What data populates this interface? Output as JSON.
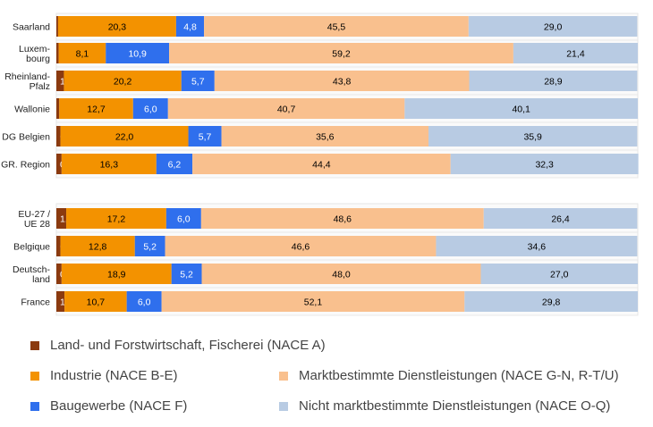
{
  "chart_data": {
    "type": "bar",
    "orientation": "horizontal",
    "stacked": true,
    "normalized": true,
    "categories": [
      "Saarland",
      "Luxem-\nbourg",
      "Rheinland-\nPfalz",
      "Wallonie",
      "DG Belgien",
      "GR. Region",
      "EU-27 /\nUE 28",
      "Belgique",
      "Deutsch-\nland",
      "France"
    ],
    "groups": [
      [
        0,
        1,
        2,
        3,
        4,
        5
      ],
      [
        6,
        7,
        8,
        9
      ]
    ],
    "series": [
      {
        "name": "Land- und Forstwirtschaft, Fischerei (NACE A)",
        "color": "#8B3A0F",
        "values": [
          0.3,
          0.4,
          1.3,
          0.5,
          0.7,
          0.9,
          1.7,
          0.7,
          0.9,
          1.4
        ]
      },
      {
        "name": "Industrie (NACE B-E)",
        "color": "#F39200",
        "values": [
          20.3,
          8.1,
          20.2,
          12.7,
          22.0,
          16.3,
          17.2,
          12.8,
          18.9,
          10.7
        ]
      },
      {
        "name": "Baugewerbe (NACE F)",
        "color": "#2F6FED",
        "values": [
          4.8,
          10.9,
          5.7,
          6.0,
          5.7,
          6.2,
          6.0,
          5.2,
          5.2,
          6.0
        ]
      },
      {
        "name": "Marktbestimmte Dienstleistungen (NACE G-N, R-T/U)",
        "color": "#F9C08E",
        "values": [
          45.5,
          59.2,
          43.8,
          40.7,
          35.6,
          44.4,
          48.6,
          46.6,
          48.0,
          52.1
        ]
      },
      {
        "name": "Nicht marktbestimmte Dienstleistungen (NACE O-Q)",
        "color": "#B8CBE3",
        "values": [
          29.0,
          21.4,
          28.9,
          40.1,
          35.9,
          32.3,
          26.4,
          34.6,
          27.0,
          29.8
        ]
      }
    ],
    "labels": [
      [
        "0,3",
        "20,3",
        "4,8",
        "45,5",
        "29,0"
      ],
      [
        "0,4",
        "8,1",
        "10,9",
        "59,2",
        "21,4"
      ],
      [
        "1,3",
        "20,2",
        "5,7",
        "43,8",
        "28,9"
      ],
      [
        "0,5",
        "12,7",
        "6,0",
        "40,7",
        "40,1"
      ],
      [
        "0,7",
        "22,0",
        "5,7",
        "35,6",
        "35,9"
      ],
      [
        "0,9",
        "16,3",
        "6,2",
        "44,4",
        "32,3"
      ],
      [
        "1,7",
        "17,2",
        "6,0",
        "48,6",
        "26,4"
      ],
      [
        "0,7",
        "12,8",
        "5,2",
        "46,6",
        "34,6"
      ],
      [
        "0,9",
        "18,9",
        "5,2",
        "48,0",
        "27,0"
      ],
      [
        "1,4",
        "10,7",
        "6,0",
        "52,1",
        "29,8"
      ]
    ],
    "label_colors": [
      "#ffffff",
      "#000000",
      "#ffffff",
      "#000000",
      "#000000"
    ],
    "xlim": [
      0,
      100
    ],
    "legend_position": "bottom"
  }
}
